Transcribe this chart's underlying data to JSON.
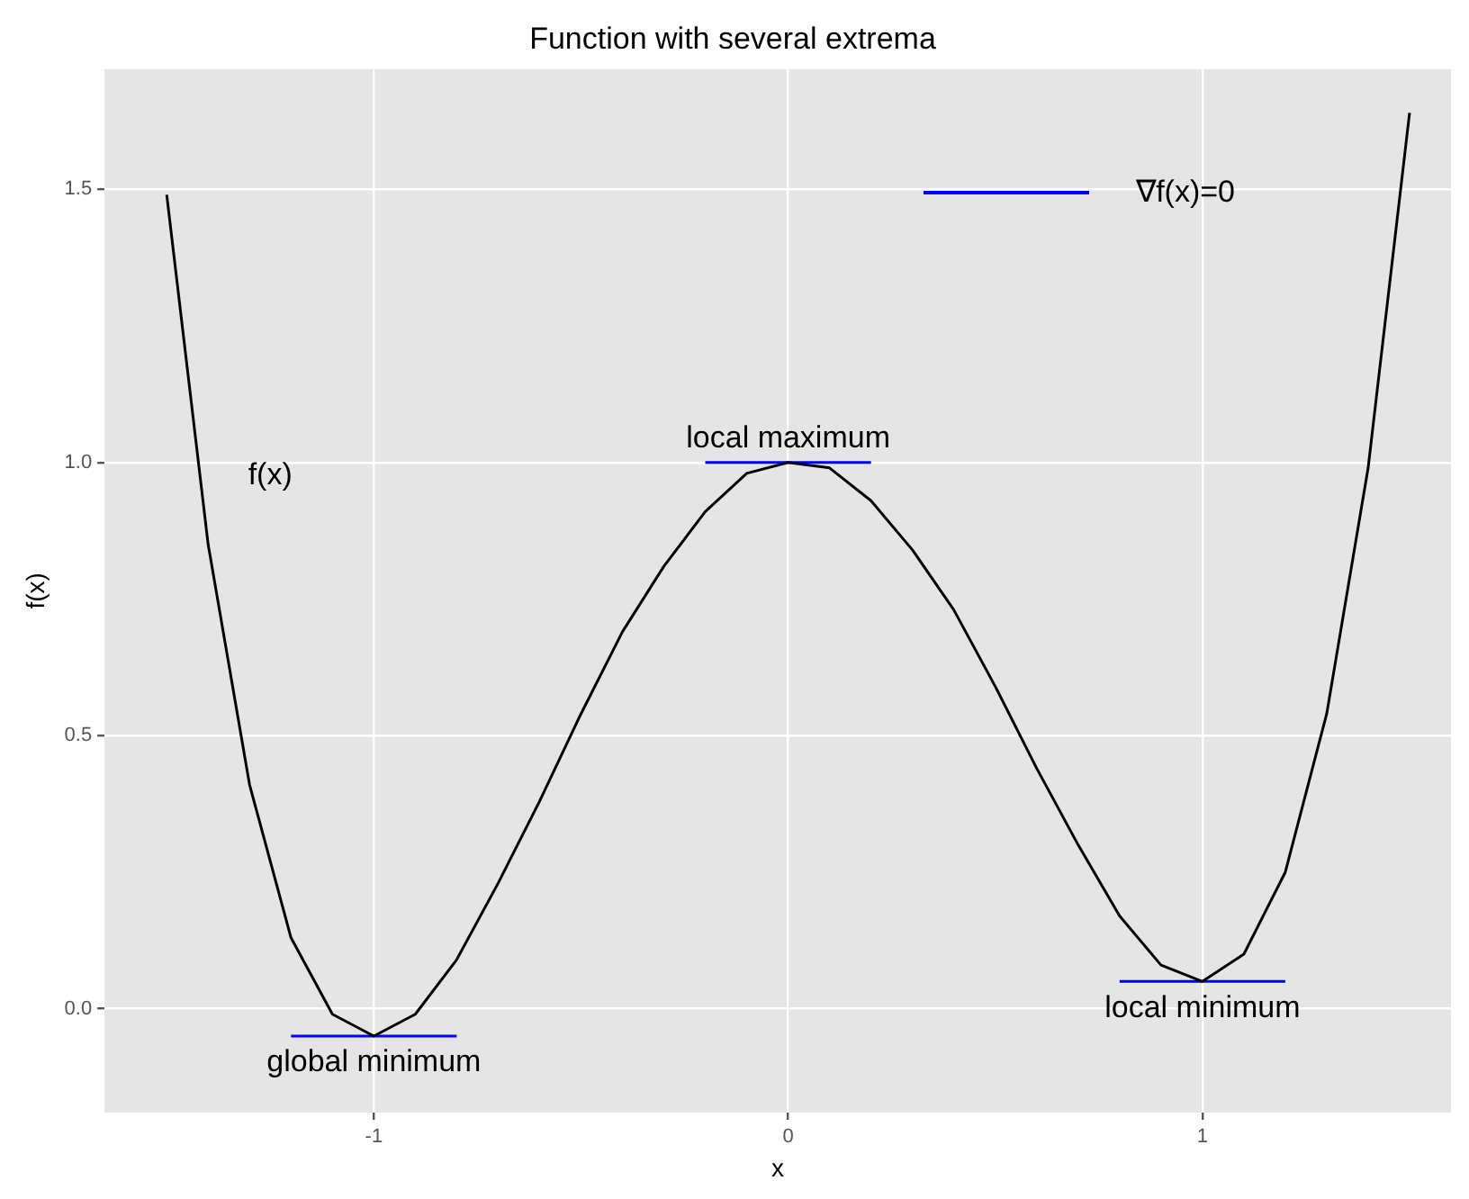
{
  "chart_data": {
    "type": "line",
    "title": "Function with several extrema",
    "xlabel": "x",
    "ylabel": "f(x)",
    "xlim": [
      -1.65,
      1.6
    ],
    "ylim": [
      -0.19,
      1.72
    ],
    "xticks": [
      -1,
      0,
      1
    ],
    "yticks": [
      {
        "value": 0,
        "label": "0.0"
      },
      {
        "value": 0.5,
        "label": "0.5"
      },
      {
        "value": 1,
        "label": "1.0"
      },
      {
        "value": 1.5,
        "label": "1.5"
      }
    ],
    "grid": true,
    "legend": "top right",
    "marker": "none",
    "line_style": "solid",
    "series": [
      {
        "color": "#000000",
        "x": [
          -1.5,
          -1.4,
          -1.3,
          -1.2,
          -1.1,
          -1.0,
          -0.9,
          -0.8,
          -0.7,
          -0.6,
          -0.5,
          -0.4,
          -0.3,
          -0.2,
          -0.1,
          0,
          0.1,
          0.2,
          0.3,
          0.4,
          0.5,
          0.6,
          0.7,
          0.8,
          0.9,
          1.0,
          1.1,
          1.2,
          1.3,
          1.4,
          1.5
        ],
        "values": [
          1.49,
          0.85,
          0.41,
          0.13,
          -0.01,
          -0.05,
          -0.01,
          0.09,
          0.23,
          0.38,
          0.54,
          0.69,
          0.81,
          0.91,
          0.98,
          1.0,
          0.99,
          0.93,
          0.84,
          0.73,
          0.59,
          0.44,
          0.3,
          0.17,
          0.08,
          0.05,
          0.1,
          0.25,
          0.54,
          0.99,
          1.64
        ]
      },
      {
        "name": "∇f(x)=0",
        "color": "#0000ff",
        "x": [
          -1.2,
          -0.8
        ],
        "values": [
          -0.05,
          -0.05
        ]
      },
      {
        "color": "#0000ff",
        "x": [
          -0.2,
          0.2
        ],
        "values": [
          1.0,
          1.0
        ]
      },
      {
        "color": "#0000ff",
        "x": [
          0.8,
          1.2
        ],
        "values": [
          0.05,
          0.05
        ]
      }
    ],
    "annotations": [
      "f(x)",
      {
        "text": "local maximum",
        "x": 0,
        "y": 1.0
      },
      {
        "text": "global minimum",
        "x": -1,
        "y": -0.05
      },
      {
        "text": "local minimum",
        "x": 1,
        "y": 0.05
      }
    ]
  }
}
